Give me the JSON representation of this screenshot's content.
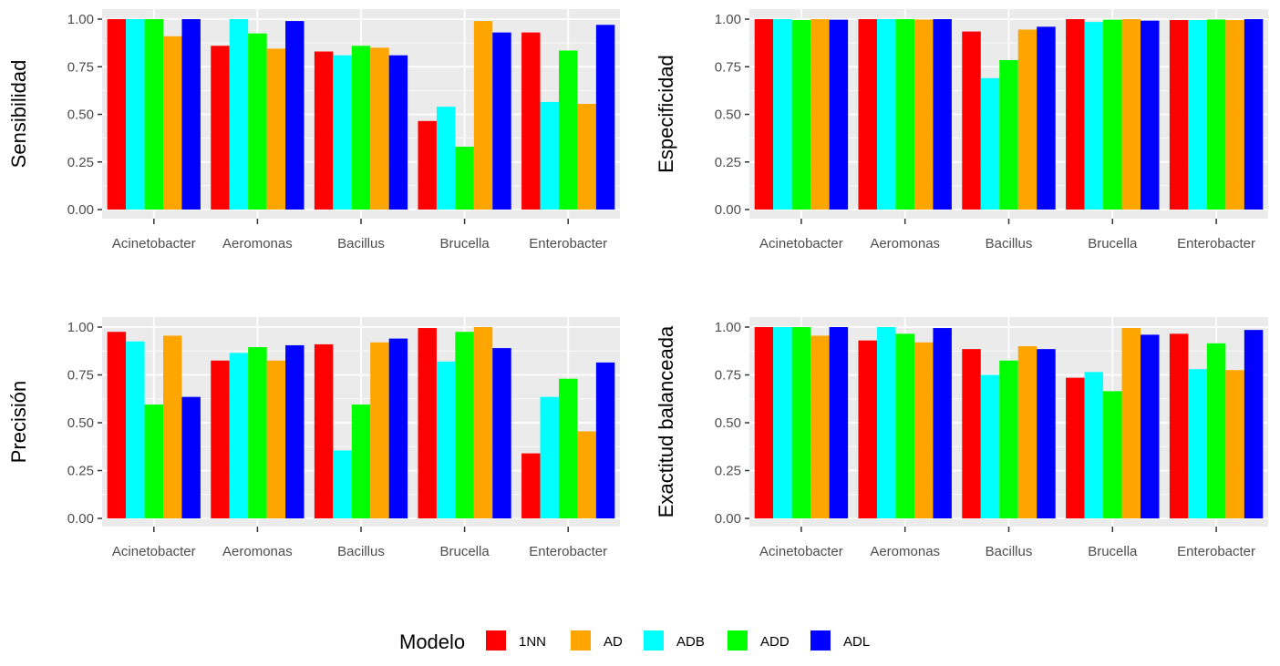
{
  "chart_data": {
    "type": "bar",
    "categories": [
      "Acinetobacter",
      "Aeromonas",
      "Bacillus",
      "Brucella",
      "Enterobacter"
    ],
    "y_ticks": [
      "0.00",
      "0.25",
      "0.50",
      "0.75",
      "1.00"
    ],
    "ylim": [
      0,
      1
    ],
    "grid": true,
    "legend": {
      "title": "Modelo",
      "position": "bottom",
      "entries": [
        {
          "label": "1NN",
          "color": "#ff0000"
        },
        {
          "label": "AD",
          "color": "#ffa500"
        },
        {
          "label": "ADB",
          "color": "#00ffff"
        },
        {
          "label": "ADD",
          "color": "#00ff00"
        },
        {
          "label": "ADL",
          "color": "#0000ff"
        }
      ]
    },
    "series_order": [
      "1NN",
      "ADB",
      "ADD",
      "AD",
      "ADL"
    ],
    "panels": [
      {
        "ylabel": "Sensibilidad",
        "series": [
          {
            "name": "1NN",
            "values": [
              1.0,
              0.86,
              0.83,
              0.465,
              0.93
            ]
          },
          {
            "name": "ADB",
            "values": [
              1.0,
              1.0,
              0.81,
              0.54,
              0.565
            ]
          },
          {
            "name": "ADD",
            "values": [
              1.0,
              0.925,
              0.86,
              0.33,
              0.835
            ]
          },
          {
            "name": "AD",
            "values": [
              0.91,
              0.845,
              0.85,
              0.99,
              0.555
            ]
          },
          {
            "name": "ADL",
            "values": [
              1.0,
              0.99,
              0.81,
              0.93,
              0.97
            ]
          }
        ]
      },
      {
        "ylabel": "Especificidad",
        "series": [
          {
            "name": "1NN",
            "values": [
              1.0,
              1.0,
              0.935,
              1.0,
              0.995
            ]
          },
          {
            "name": "ADB",
            "values": [
              1.0,
              1.0,
              0.69,
              0.985,
              0.995
            ]
          },
          {
            "name": "ADD",
            "values": [
              0.995,
              1.0,
              0.785,
              0.997,
              0.998
            ]
          },
          {
            "name": "AD",
            "values": [
              1.0,
              0.998,
              0.945,
              1.0,
              0.995
            ]
          },
          {
            "name": "ADL",
            "values": [
              0.997,
              1.0,
              0.96,
              0.992,
              1.0
            ]
          }
        ]
      },
      {
        "ylabel": "Precisión",
        "series": [
          {
            "name": "1NN",
            "values": [
              0.975,
              0.825,
              0.91,
              0.995,
              0.34
            ]
          },
          {
            "name": "ADB",
            "values": [
              0.925,
              0.865,
              0.355,
              0.82,
              0.635
            ]
          },
          {
            "name": "ADD",
            "values": [
              0.595,
              0.895,
              0.595,
              0.975,
              0.73
            ]
          },
          {
            "name": "AD",
            "values": [
              0.955,
              0.825,
              0.92,
              1.0,
              0.455
            ]
          },
          {
            "name": "ADL",
            "values": [
              0.635,
              0.905,
              0.94,
              0.89,
              0.815
            ]
          }
        ]
      },
      {
        "ylabel": "Exactitud balanceada",
        "series": [
          {
            "name": "1NN",
            "values": [
              1.0,
              0.93,
              0.885,
              0.735,
              0.965
            ]
          },
          {
            "name": "ADB",
            "values": [
              1.0,
              1.0,
              0.75,
              0.765,
              0.78
            ]
          },
          {
            "name": "ADD",
            "values": [
              1.0,
              0.965,
              0.825,
              0.665,
              0.915
            ]
          },
          {
            "name": "AD",
            "values": [
              0.955,
              0.92,
              0.9,
              0.995,
              0.775
            ]
          },
          {
            "name": "ADL",
            "values": [
              1.0,
              0.995,
              0.885,
              0.96,
              0.985
            ]
          }
        ]
      }
    ]
  }
}
